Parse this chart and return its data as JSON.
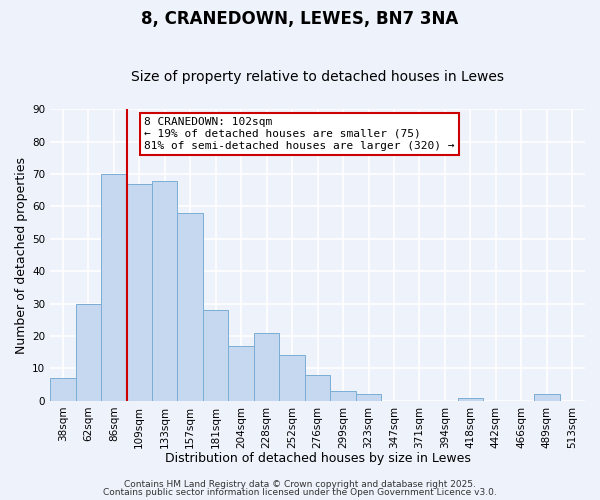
{
  "title": "8, CRANEDOWN, LEWES, BN7 3NA",
  "subtitle": "Size of property relative to detached houses in Lewes",
  "xlabel": "Distribution of detached houses by size in Lewes",
  "ylabel": "Number of detached properties",
  "categories": [
    "38sqm",
    "62sqm",
    "86sqm",
    "109sqm",
    "133sqm",
    "157sqm",
    "181sqm",
    "204sqm",
    "228sqm",
    "252sqm",
    "276sqm",
    "299sqm",
    "323sqm",
    "347sqm",
    "371sqm",
    "394sqm",
    "418sqm",
    "442sqm",
    "466sqm",
    "489sqm",
    "513sqm"
  ],
  "values": [
    7,
    30,
    70,
    67,
    68,
    58,
    28,
    17,
    21,
    14,
    8,
    3,
    2,
    0,
    0,
    0,
    1,
    0,
    0,
    2,
    0
  ],
  "bar_color": "#c5d8f0",
  "bar_edge_color": "#7badd6",
  "vline_x_index": 2.5,
  "vline_color": "#cc0000",
  "annotation_text": "8 CRANEDOWN: 102sqm\n← 19% of detached houses are smaller (75)\n81% of semi-detached houses are larger (320) →",
  "annotation_box_color": "#ffffff",
  "annotation_box_edge_color": "#cc0000",
  "ylim": [
    0,
    90
  ],
  "yticks": [
    0,
    10,
    20,
    30,
    40,
    50,
    60,
    70,
    80,
    90
  ],
  "background_color": "#eef2fb",
  "grid_color": "#ffffff",
  "footer_line1": "Contains HM Land Registry data © Crown copyright and database right 2025.",
  "footer_line2": "Contains public sector information licensed under the Open Government Licence v3.0.",
  "title_fontsize": 12,
  "subtitle_fontsize": 10,
  "axis_label_fontsize": 9,
  "tick_fontsize": 7.5,
  "annotation_fontsize": 8,
  "footer_fontsize": 6.5
}
